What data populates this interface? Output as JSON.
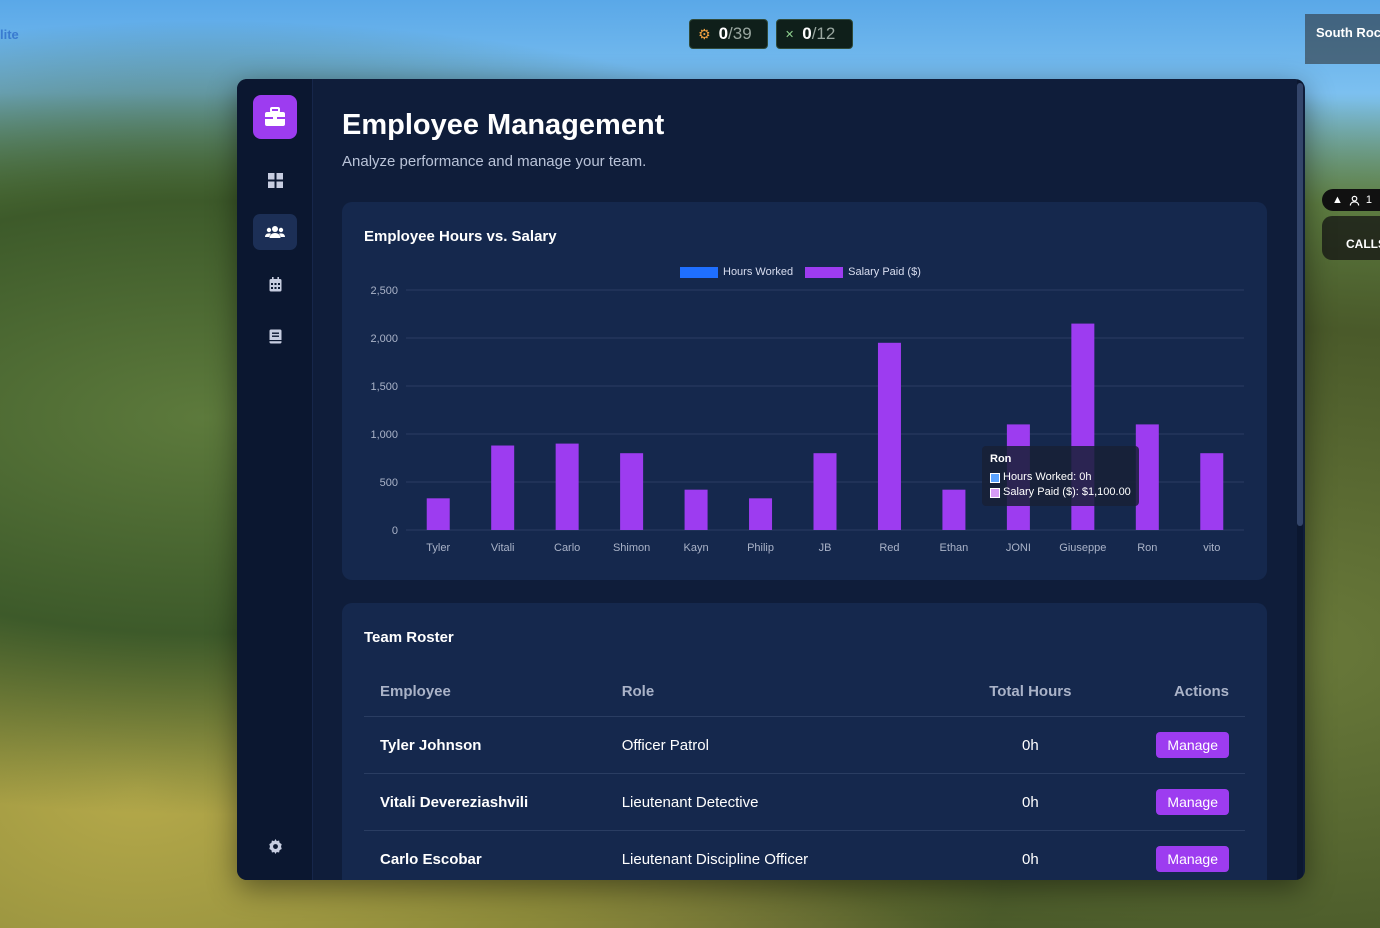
{
  "hud": {
    "left_text": "lite",
    "counter1": {
      "value": "0",
      "total": "/39",
      "icon": "person-walking-icon"
    },
    "counter2": {
      "value": "0",
      "total": "/12",
      "icon": "close-x-icon"
    },
    "location": "South Roc",
    "pill_text": "1",
    "calls_text": "CALLS"
  },
  "sidebar": {
    "logo_icon": "briefcase-icon",
    "items": [
      {
        "name": "dashboard",
        "icon": "grid-icon"
      },
      {
        "name": "employees",
        "icon": "users-icon",
        "active": true
      },
      {
        "name": "calendar",
        "icon": "calendar-icon"
      },
      {
        "name": "reports",
        "icon": "book-icon"
      }
    ],
    "settings_icon": "gear-icon"
  },
  "header": {
    "title": "Employee Management",
    "subtitle": "Analyze performance and manage your team."
  },
  "chart_card": {
    "title": "Employee Hours vs. Salary"
  },
  "chart_data": {
    "type": "bar",
    "stacked": true,
    "categories": [
      "Tyler",
      "Vitali",
      "Carlo",
      "Shimon",
      "Kayn",
      "Philip",
      "JB",
      "Red",
      "Ethan",
      "JONI",
      "Giuseppe",
      "Ron",
      "vito"
    ],
    "series": [
      {
        "name": "Hours Worked",
        "color": "#1f6fff",
        "values": [
          0,
          0,
          0,
          0,
          0,
          0,
          0,
          0,
          0,
          0,
          0,
          0,
          0
        ]
      },
      {
        "name": "Salary Paid ($)",
        "color": "#9d3cf0",
        "values": [
          330,
          880,
          900,
          800,
          420,
          330,
          800,
          1950,
          420,
          1100,
          2150,
          1100,
          800
        ]
      }
    ],
    "yticks": [
      "0",
      "500",
      "1,000",
      "1,500",
      "2,000",
      "2,500"
    ],
    "ylim": [
      0,
      2500
    ],
    "grid": true,
    "legend_position": "top-center",
    "tooltip": {
      "title": "Ron",
      "rows": [
        {
          "label": "Hours Worked: 0h",
          "color": "#5aa2ff"
        },
        {
          "label": "Salary Paid ($): $1,100.00",
          "color": "#d79cf5"
        }
      ]
    }
  },
  "roster": {
    "title": "Team Roster",
    "columns": [
      "Employee",
      "Role",
      "Total Hours",
      "Actions"
    ],
    "rows": [
      {
        "name": "Tyler Johnson",
        "role": "Officer Patrol",
        "hours": "0h",
        "action": "Manage"
      },
      {
        "name": "Vitali Devereziashvili",
        "role": "Lieutenant Detective",
        "hours": "0h",
        "action": "Manage"
      },
      {
        "name": "Carlo Escobar",
        "role": "Lieutenant Discipline Officer",
        "hours": "0h",
        "action": "Manage"
      }
    ]
  }
}
